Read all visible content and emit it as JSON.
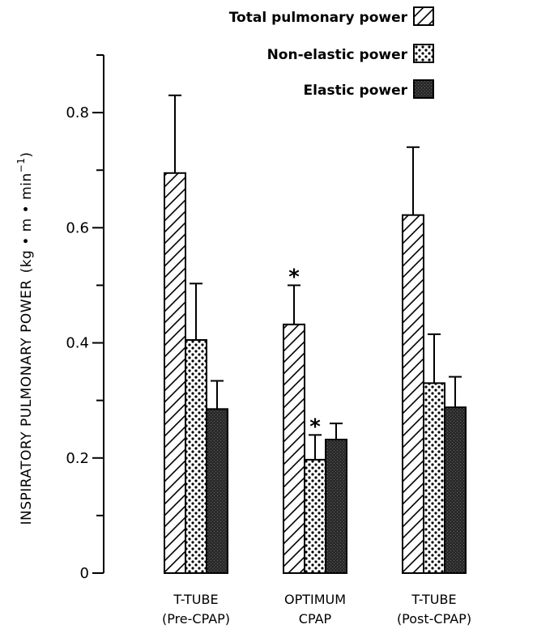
{
  "chart_data": {
    "type": "bar",
    "title": "",
    "ylabel": "INSPIRATORY PULMONARY POWER",
    "ylabel_units": "(kg • m • min",
    "ylabel_exp": "−1",
    "ylabel_close": ")",
    "ylim": [
      0,
      0.9
    ],
    "yticks": [
      {
        "value": 0,
        "label": "0"
      },
      {
        "value": 0.2,
        "label": "0.2"
      },
      {
        "value": 0.4,
        "label": "0.4"
      },
      {
        "value": 0.6,
        "label": "0.6"
      },
      {
        "value": 0.8,
        "label": "0.8"
      }
    ],
    "minor_ticks": [
      0.1,
      0.3,
      0.5,
      0.7,
      0.9
    ],
    "categories": [
      {
        "line1": "T-TUBE",
        "line2": "(Pre-CPAP)"
      },
      {
        "line1": "OPTIMUM",
        "line2": "CPAP"
      },
      {
        "line1": "T-TUBE",
        "line2": "(Post-CPAP)"
      }
    ],
    "series": [
      {
        "name": "Total pulmonary power",
        "pattern": "hatch",
        "values": [
          0.695,
          0.432,
          0.622
        ],
        "errors": [
          0.135,
          0.068,
          0.118
        ],
        "significant": [
          false,
          true,
          false
        ]
      },
      {
        "name": "Non-elastic power",
        "pattern": "dots",
        "values": [
          0.405,
          0.197,
          0.33
        ],
        "errors": [
          0.098,
          0.043,
          0.085
        ],
        "significant": [
          false,
          true,
          false
        ]
      },
      {
        "name": "Elastic power",
        "pattern": "dark",
        "values": [
          0.285,
          0.232,
          0.288
        ],
        "errors": [
          0.049,
          0.028,
          0.053
        ],
        "significant": [
          false,
          false,
          false
        ]
      }
    ],
    "significance_marker": "*",
    "grid": false,
    "legend_position": "top-right"
  }
}
